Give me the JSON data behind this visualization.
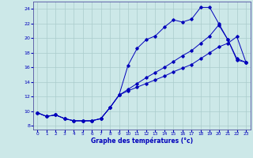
{
  "title": "Graphe des températures (°c)",
  "xlim": [
    -0.5,
    23.5
  ],
  "ylim": [
    7.5,
    25.0
  ],
  "xticks": [
    0,
    1,
    2,
    3,
    4,
    5,
    6,
    7,
    8,
    9,
    10,
    11,
    12,
    13,
    14,
    15,
    16,
    17,
    18,
    19,
    20,
    21,
    22,
    23
  ],
  "yticks": [
    8,
    10,
    12,
    14,
    16,
    18,
    20,
    22,
    24
  ],
  "background_color": "#cce8e8",
  "grid_color": "#aacccc",
  "line_color": "#0000bb",
  "line1_x": [
    0,
    1,
    2,
    3,
    4,
    5,
    6,
    7,
    8,
    9,
    10,
    11,
    12,
    13,
    14,
    15,
    16,
    17,
    18,
    19,
    20,
    21,
    22,
    23
  ],
  "line1_y": [
    9.8,
    9.3,
    9.5,
    9.0,
    8.7,
    8.7,
    8.7,
    9.0,
    10.5,
    12.2,
    16.3,
    18.6,
    19.8,
    20.3,
    21.5,
    22.5,
    22.2,
    22.6,
    24.2,
    24.2,
    22.0,
    19.8,
    17.2,
    16.7
  ],
  "line2_x": [
    0,
    1,
    2,
    3,
    4,
    5,
    6,
    7,
    8,
    9,
    10,
    11,
    12,
    13,
    14,
    15,
    16,
    17,
    18,
    19,
    20,
    21,
    22,
    23
  ],
  "line2_y": [
    9.8,
    9.3,
    9.5,
    9.0,
    8.7,
    8.7,
    8.7,
    9.0,
    10.5,
    12.2,
    12.8,
    13.3,
    13.8,
    14.3,
    14.8,
    15.4,
    15.9,
    16.4,
    17.2,
    18.0,
    18.8,
    19.3,
    20.2,
    16.7
  ],
  "line3_x": [
    0,
    1,
    2,
    3,
    4,
    5,
    6,
    7,
    8,
    9,
    10,
    11,
    12,
    13,
    14,
    15,
    16,
    17,
    18,
    19,
    20,
    21,
    22,
    23
  ],
  "line3_y": [
    9.8,
    9.3,
    9.5,
    9.0,
    8.7,
    8.7,
    8.7,
    9.0,
    10.5,
    12.2,
    13.0,
    13.8,
    14.6,
    15.3,
    16.0,
    16.8,
    17.6,
    18.3,
    19.3,
    20.3,
    21.8,
    19.8,
    17.0,
    16.7
  ]
}
